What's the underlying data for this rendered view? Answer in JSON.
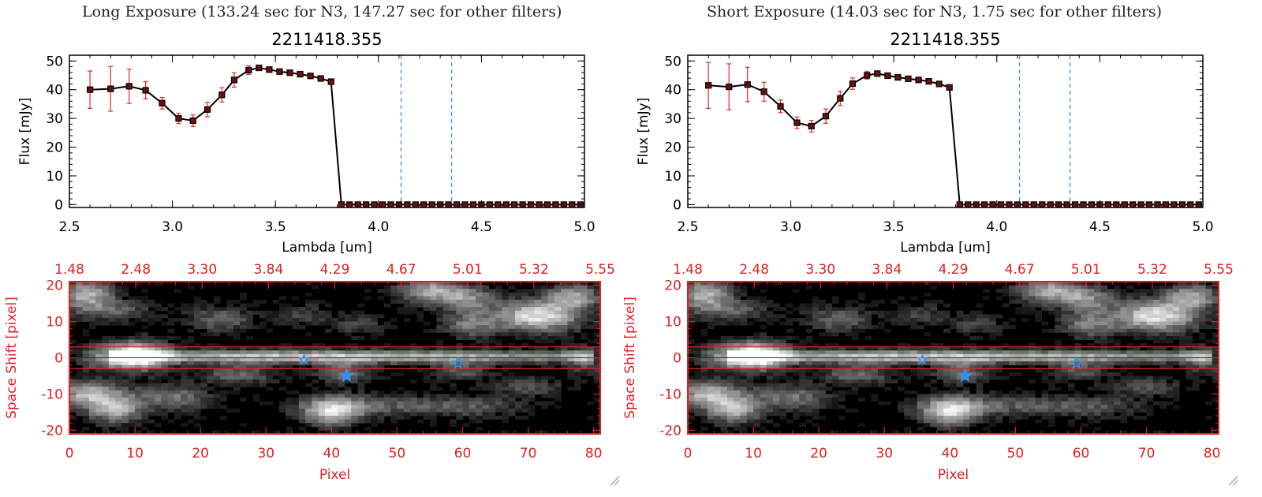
{
  "colors": {
    "axis": "#000000",
    "red_axis": "#dd2222",
    "errorbar": "#e02a2a",
    "marker": "#000000",
    "marker_fill": "#6a1010",
    "vline": "#3a8fe8",
    "dashed_zero": "#e02a2a",
    "star": "#3a8fe8",
    "band_line": "#dd2222"
  },
  "panels": [
    {
      "id": "long",
      "header": "Long Exposure (133.24 sec for N3, 147.27 sec for other filters)",
      "chart_data": [
        {
          "type": "line",
          "title": "2211418.355",
          "xlabel": "Lambda [um]",
          "ylabel": "Flux [mJy]",
          "xlim": [
            2.5,
            5.0
          ],
          "ylim": [
            -1,
            52
          ],
          "xticks": [
            "2.5",
            "3.0",
            "3.5",
            "4.0",
            "4.5",
            "5.0"
          ],
          "yticks": [
            "0",
            "10",
            "20",
            "30",
            "40",
            "50"
          ],
          "vlines": [
            4.11,
            4.355
          ],
          "series": [
            {
              "x": [
                2.6,
                2.7,
                2.79,
                2.87,
                2.95,
                3.03,
                3.1,
                3.17,
                3.24,
                3.3,
                3.37,
                3.42,
                3.47,
                3.52,
                3.57,
                3.62,
                3.67,
                3.72,
                3.77,
                3.82,
                3.86,
                3.9,
                3.94,
                3.98,
                4.02,
                4.06,
                4.1,
                4.14,
                4.18,
                4.22,
                4.26,
                4.3,
                4.34,
                4.38,
                4.42,
                4.46,
                4.5,
                4.54,
                4.58,
                4.62,
                4.66,
                4.7,
                4.74,
                4.78,
                4.82,
                4.86,
                4.9,
                4.94,
                4.98
              ],
              "y": [
                40,
                40.3,
                41.2,
                39.8,
                35.3,
                30.0,
                29.2,
                33.1,
                38.2,
                43.4,
                46.8,
                47.6,
                47.0,
                46.3,
                45.9,
                45.4,
                44.8,
                43.9,
                42.8,
                0,
                0,
                0,
                0,
                0,
                0,
                0,
                0,
                0,
                0,
                0,
                0,
                0,
                0,
                0,
                0,
                0,
                0,
                0,
                0,
                0,
                0,
                0,
                0,
                0,
                0,
                0,
                0,
                0,
                0
              ],
              "err": [
                6.5,
                7.8,
                6.0,
                3.0,
                2.0,
                1.8,
                2.0,
                2.5,
                2.5,
                2.5,
                1.5,
                0.8,
                0.6,
                0.6,
                0.6,
                0.6,
                0.6,
                0.6,
                0.6,
                0,
                0,
                0,
                0,
                0,
                0,
                0,
                0,
                0,
                0,
                0,
                0,
                0,
                0,
                0,
                0,
                0,
                0,
                0,
                0,
                0,
                0,
                0,
                0,
                0,
                0,
                0,
                0,
                0,
                0
              ]
            }
          ]
        },
        {
          "type": "heatmap",
          "xlabel": "Pixel",
          "ylabel": "Space Shift [pixel]",
          "xlim": [
            0,
            81
          ],
          "ylim": [
            -21,
            21
          ],
          "xticks": [
            "0",
            "10",
            "20",
            "30",
            "40",
            "50",
            "60",
            "70",
            "80"
          ],
          "yticks": [
            "-20",
            "-10",
            "0",
            "10",
            "20"
          ],
          "top_ticks": [
            "1.48",
            "2.48",
            "3.30",
            "3.84",
            "4.29",
            "4.67",
            "5.01",
            "5.32",
            "5.55"
          ],
          "band": [
            -3,
            3
          ],
          "stars": [
            {
              "x": 35.8,
              "y": -0.5,
              "size": "small"
            },
            {
              "x": 42.3,
              "y": -5.0,
              "size": "large"
            },
            {
              "x": 59.3,
              "y": -1.5,
              "size": "medium"
            }
          ],
          "blobs": [
            {
              "x": 2.5,
              "y": 17.5,
              "sx": 3.0,
              "sy": 3.0,
              "a": 0.7
            },
            {
              "x": 7.0,
              "y": 13.0,
              "sx": 4.0,
              "sy": 2.0,
              "a": 0.35
            },
            {
              "x": 23.0,
              "y": 10.5,
              "sx": 3.5,
              "sy": 2.5,
              "a": 0.4
            },
            {
              "x": 35.5,
              "y": 12.0,
              "sx": 3.0,
              "sy": 2.0,
              "a": 0.25
            },
            {
              "x": 44.0,
              "y": 9.0,
              "sx": 3.0,
              "sy": 2.0,
              "a": 0.25
            },
            {
              "x": 55.0,
              "y": 18.5,
              "sx": 3.5,
              "sy": 2.5,
              "a": 0.65
            },
            {
              "x": 61.0,
              "y": 16.0,
              "sx": 3.0,
              "sy": 2.5,
              "a": 0.5
            },
            {
              "x": 61.0,
              "y": 9.0,
              "sx": 3.0,
              "sy": 2.5,
              "a": 0.45
            },
            {
              "x": 71.5,
              "y": 11.5,
              "sx": 4.5,
              "sy": 3.0,
              "a": 0.9
            },
            {
              "x": 77.0,
              "y": 17.0,
              "sx": 3.0,
              "sy": 2.5,
              "a": 0.6
            },
            {
              "x": 10.0,
              "y": 0.5,
              "sx": 3.5,
              "sy": 2.8,
              "a": 1.0
            },
            {
              "x": 4.0,
              "y": 0.0,
              "sx": 2.0,
              "sy": 2.2,
              "a": 0.3
            },
            {
              "x": 26.0,
              "y": -4.5,
              "sx": 4.0,
              "sy": 2.0,
              "a": 0.4
            },
            {
              "x": 42.0,
              "y": -4.0,
              "sx": 3.0,
              "sy": 2.0,
              "a": 0.45
            },
            {
              "x": 59.5,
              "y": -3.5,
              "sx": 3.0,
              "sy": 2.0,
              "a": 0.35
            },
            {
              "x": 3.0,
              "y": -10.0,
              "sx": 4.0,
              "sy": 2.5,
              "a": 0.7
            },
            {
              "x": 7.0,
              "y": -14.5,
              "sx": 3.0,
              "sy": 2.5,
              "a": 0.65
            },
            {
              "x": 16.0,
              "y": -11.0,
              "sx": 4.0,
              "sy": 2.5,
              "a": 0.45
            },
            {
              "x": 40.0,
              "y": -14.5,
              "sx": 3.5,
              "sy": 2.8,
              "a": 0.85
            },
            {
              "x": 50.0,
              "y": -13.0,
              "sx": 6.0,
              "sy": 2.0,
              "a": 0.35
            },
            {
              "x": 62.0,
              "y": -13.5,
              "sx": 5.0,
              "sy": 2.0,
              "a": 0.3
            },
            {
              "x": 70.0,
              "y": -8.0,
              "sx": 4.0,
              "sy": 2.0,
              "a": 0.3
            },
            {
              "x": 79.0,
              "y": -1.0,
              "sx": 2.0,
              "sy": 3.0,
              "a": 0.3
            }
          ]
        }
      ]
    },
    {
      "id": "short",
      "header": "Short Exposure (14.03 sec for N3, 1.75 sec for other filters)",
      "chart_data": [
        {
          "type": "line",
          "title": "2211418.355",
          "xlabel": "Lambda [um]",
          "ylabel": "Flux [mJy]",
          "xlim": [
            2.5,
            5.0
          ],
          "ylim": [
            -1,
            52
          ],
          "xticks": [
            "2.5",
            "3.0",
            "3.5",
            "4.0",
            "4.5",
            "5.0"
          ],
          "yticks": [
            "0",
            "10",
            "20",
            "30",
            "40",
            "50"
          ],
          "vlines": [
            4.11,
            4.355
          ],
          "series": [
            {
              "x": [
                2.6,
                2.7,
                2.79,
                2.87,
                2.95,
                3.03,
                3.1,
                3.17,
                3.24,
                3.3,
                3.37,
                3.42,
                3.47,
                3.52,
                3.57,
                3.62,
                3.67,
                3.72,
                3.77,
                3.82,
                3.86,
                3.9,
                3.94,
                3.98,
                4.02,
                4.06,
                4.1,
                4.14,
                4.18,
                4.22,
                4.26,
                4.3,
                4.34,
                4.38,
                4.42,
                4.46,
                4.5,
                4.54,
                4.58,
                4.62,
                4.66,
                4.7,
                4.74,
                4.78,
                4.82,
                4.86,
                4.9,
                4.94,
                4.98
              ],
              "y": [
                41.5,
                41.0,
                41.8,
                39.3,
                34.2,
                28.5,
                27.3,
                30.8,
                37.0,
                42.1,
                45.0,
                45.6,
                44.9,
                44.3,
                43.8,
                43.4,
                42.9,
                42.0,
                40.8,
                0,
                0,
                0,
                0,
                0,
                0,
                0,
                0,
                0,
                0,
                0,
                0,
                0,
                0,
                0,
                0,
                0,
                0,
                0,
                0,
                0,
                0,
                0,
                0,
                0,
                0,
                0,
                0,
                0,
                0
              ],
              "err": [
                8.0,
                8.0,
                6.0,
                3.3,
                2.2,
                2.0,
                2.0,
                2.5,
                2.5,
                2.0,
                1.3,
                0.8,
                0.6,
                0.6,
                0.6,
                0.6,
                0.6,
                0.6,
                0.6,
                0,
                0,
                0,
                0,
                0,
                0,
                0,
                0,
                0,
                0,
                0,
                0,
                0,
                0,
                0,
                0,
                0,
                0,
                0,
                0,
                0,
                0,
                0,
                0,
                0,
                0,
                0,
                0,
                0,
                0
              ]
            }
          ]
        },
        {
          "type": "heatmap",
          "xlabel": "Pixel",
          "ylabel": "Space Shift [pixel]",
          "xlim": [
            0,
            81
          ],
          "ylim": [
            -21,
            21
          ],
          "xticks": [
            "0",
            "10",
            "20",
            "30",
            "40",
            "50",
            "60",
            "70",
            "80"
          ],
          "yticks": [
            "-20",
            "-10",
            "0",
            "10",
            "20"
          ],
          "top_ticks": [
            "1.48",
            "2.48",
            "3.30",
            "3.84",
            "4.29",
            "4.67",
            "5.01",
            "5.32",
            "5.55"
          ],
          "band": [
            -3,
            3
          ],
          "stars": [
            {
              "x": 35.8,
              "y": -0.5,
              "size": "small"
            },
            {
              "x": 42.3,
              "y": -5.0,
              "size": "large"
            },
            {
              "x": 59.3,
              "y": -1.5,
              "size": "medium"
            }
          ],
          "blobs": [
            {
              "x": 2.5,
              "y": 17.5,
              "sx": 3.0,
              "sy": 3.0,
              "a": 0.7
            },
            {
              "x": 7.0,
              "y": 13.0,
              "sx": 4.0,
              "sy": 2.0,
              "a": 0.35
            },
            {
              "x": 23.0,
              "y": 10.5,
              "sx": 3.5,
              "sy": 2.5,
              "a": 0.4
            },
            {
              "x": 35.5,
              "y": 12.0,
              "sx": 3.0,
              "sy": 2.0,
              "a": 0.25
            },
            {
              "x": 44.0,
              "y": 9.0,
              "sx": 3.0,
              "sy": 2.0,
              "a": 0.25
            },
            {
              "x": 55.0,
              "y": 18.5,
              "sx": 3.5,
              "sy": 2.5,
              "a": 0.65
            },
            {
              "x": 61.0,
              "y": 16.0,
              "sx": 3.0,
              "sy": 2.5,
              "a": 0.5
            },
            {
              "x": 61.0,
              "y": 9.0,
              "sx": 3.0,
              "sy": 2.5,
              "a": 0.45
            },
            {
              "x": 71.5,
              "y": 11.5,
              "sx": 4.5,
              "sy": 3.0,
              "a": 0.9
            },
            {
              "x": 77.0,
              "y": 17.0,
              "sx": 3.0,
              "sy": 2.5,
              "a": 0.6
            },
            {
              "x": 10.0,
              "y": 0.5,
              "sx": 3.5,
              "sy": 2.8,
              "a": 1.0
            },
            {
              "x": 4.0,
              "y": 0.0,
              "sx": 2.0,
              "sy": 2.2,
              "a": 0.3
            },
            {
              "x": 26.0,
              "y": -4.5,
              "sx": 4.0,
              "sy": 2.0,
              "a": 0.4
            },
            {
              "x": 42.0,
              "y": -4.0,
              "sx": 3.0,
              "sy": 2.0,
              "a": 0.45
            },
            {
              "x": 59.5,
              "y": -3.5,
              "sx": 3.0,
              "sy": 2.0,
              "a": 0.35
            },
            {
              "x": 3.0,
              "y": -10.0,
              "sx": 4.0,
              "sy": 2.5,
              "a": 0.7
            },
            {
              "x": 7.0,
              "y": -14.5,
              "sx": 3.0,
              "sy": 2.5,
              "a": 0.65
            },
            {
              "x": 16.0,
              "y": -11.0,
              "sx": 4.0,
              "sy": 2.5,
              "a": 0.45
            },
            {
              "x": 40.0,
              "y": -14.5,
              "sx": 3.5,
              "sy": 2.8,
              "a": 0.85
            },
            {
              "x": 50.0,
              "y": -13.0,
              "sx": 6.0,
              "sy": 2.0,
              "a": 0.35
            },
            {
              "x": 62.0,
              "y": -13.5,
              "sx": 5.0,
              "sy": 2.0,
              "a": 0.3
            },
            {
              "x": 70.0,
              "y": -8.0,
              "sx": 4.0,
              "sy": 2.0,
              "a": 0.3
            },
            {
              "x": 79.0,
              "y": -1.0,
              "sx": 2.0,
              "sy": 3.0,
              "a": 0.3
            }
          ]
        }
      ]
    }
  ]
}
